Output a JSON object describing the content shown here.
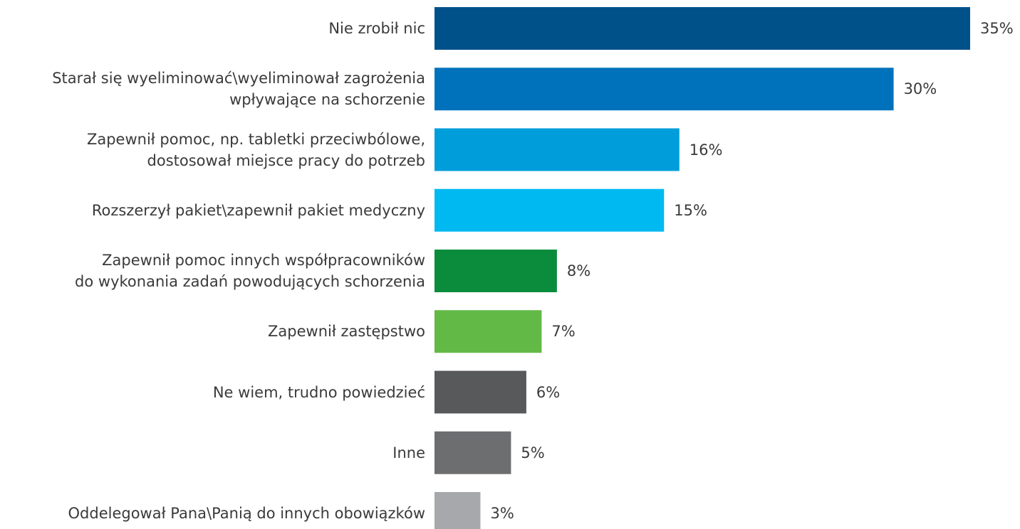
{
  "chart_data": {
    "type": "bar",
    "orientation": "horizontal",
    "categories": [
      "Nie zrobił nic",
      "Starał się wyeliminować\\wyeliminował zagrożenia\nwpływające na schorzenie",
      "Zapewnił pomoc, np. tabletki przeciwbólowe,\ndostosował miejsce pracy do potrzeb",
      "Rozszerzył pakiet\\zapewnił pakiet medyczny",
      "Zapewnił pomoc innych współpracowników\ndo wykonania zadań powodujących schorzenia",
      "Zapewnił zastępstwo",
      "Ne wiem, trudno powiedzieć",
      "Inne",
      "Oddelegował Pana\\Panią do innych obowiązków"
    ],
    "values": [
      35,
      30,
      16,
      15,
      8,
      7,
      6,
      5,
      3
    ],
    "value_labels": [
      "35%",
      "30%",
      "16%",
      "15%",
      "8%",
      "7%",
      "6%",
      "5%",
      "3%"
    ],
    "colors": [
      "#00508a",
      "#0072bc",
      "#009ddb",
      "#00b9f1",
      "#0a8c3c",
      "#62b946",
      "#58595b",
      "#6d6e70",
      "#a6a8ab"
    ]
  }
}
